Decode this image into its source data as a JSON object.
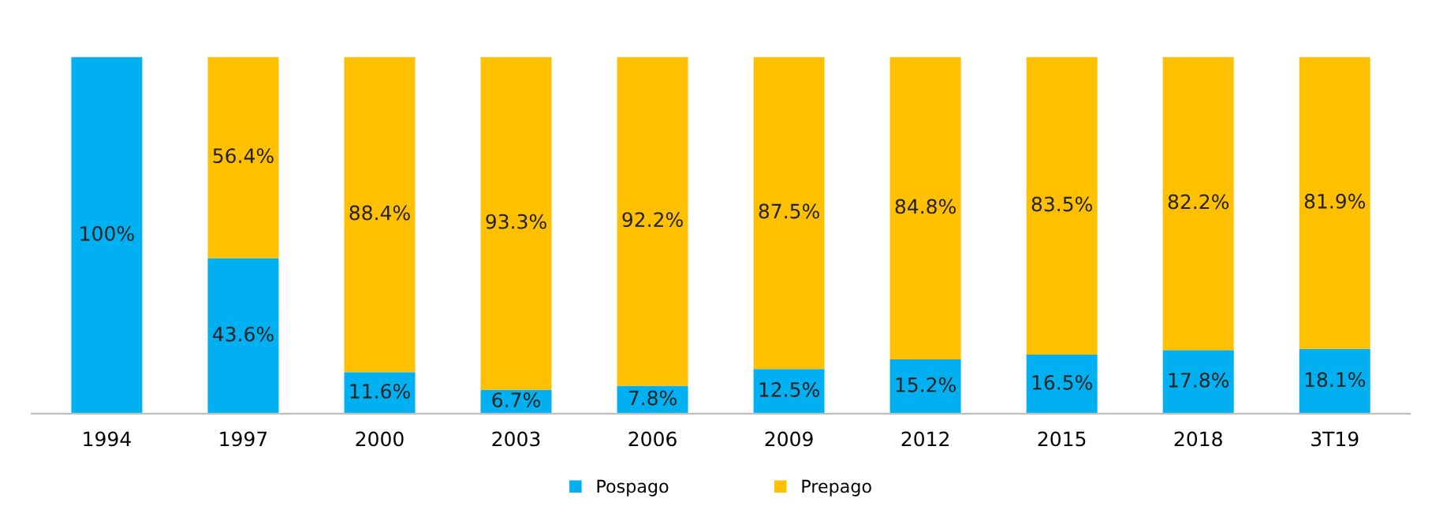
{
  "chart_data": {
    "type": "bar",
    "stacked": true,
    "categories": [
      "1994",
      "1997",
      "2000",
      "2003",
      "2006",
      "2009",
      "2012",
      "2015",
      "2018",
      "3T19"
    ],
    "series": [
      {
        "name": "Pospago",
        "color": "#00b0f0",
        "values": [
          100,
          43.6,
          11.6,
          6.7,
          7.8,
          12.5,
          15.2,
          16.5,
          17.8,
          18.1
        ],
        "value_labels": [
          "100%",
          "43.6%",
          "11.6%",
          "6.7%",
          "7.8%",
          "12.5%",
          "15.2%",
          "16.5%",
          "17.8%",
          "18.1%"
        ]
      },
      {
        "name": "Prepago",
        "color": "#ffc000",
        "values": [
          0,
          56.4,
          88.4,
          93.3,
          92.2,
          87.5,
          84.8,
          83.5,
          82.2,
          81.9
        ],
        "value_labels": [
          null,
          "56.4%",
          "88.4%",
          "93.3%",
          "92.2%",
          "87.5%",
          "84.8%",
          "83.5%",
          "82.2%",
          "81.9%"
        ]
      }
    ],
    "legend": "bottom",
    "grid": false
  }
}
